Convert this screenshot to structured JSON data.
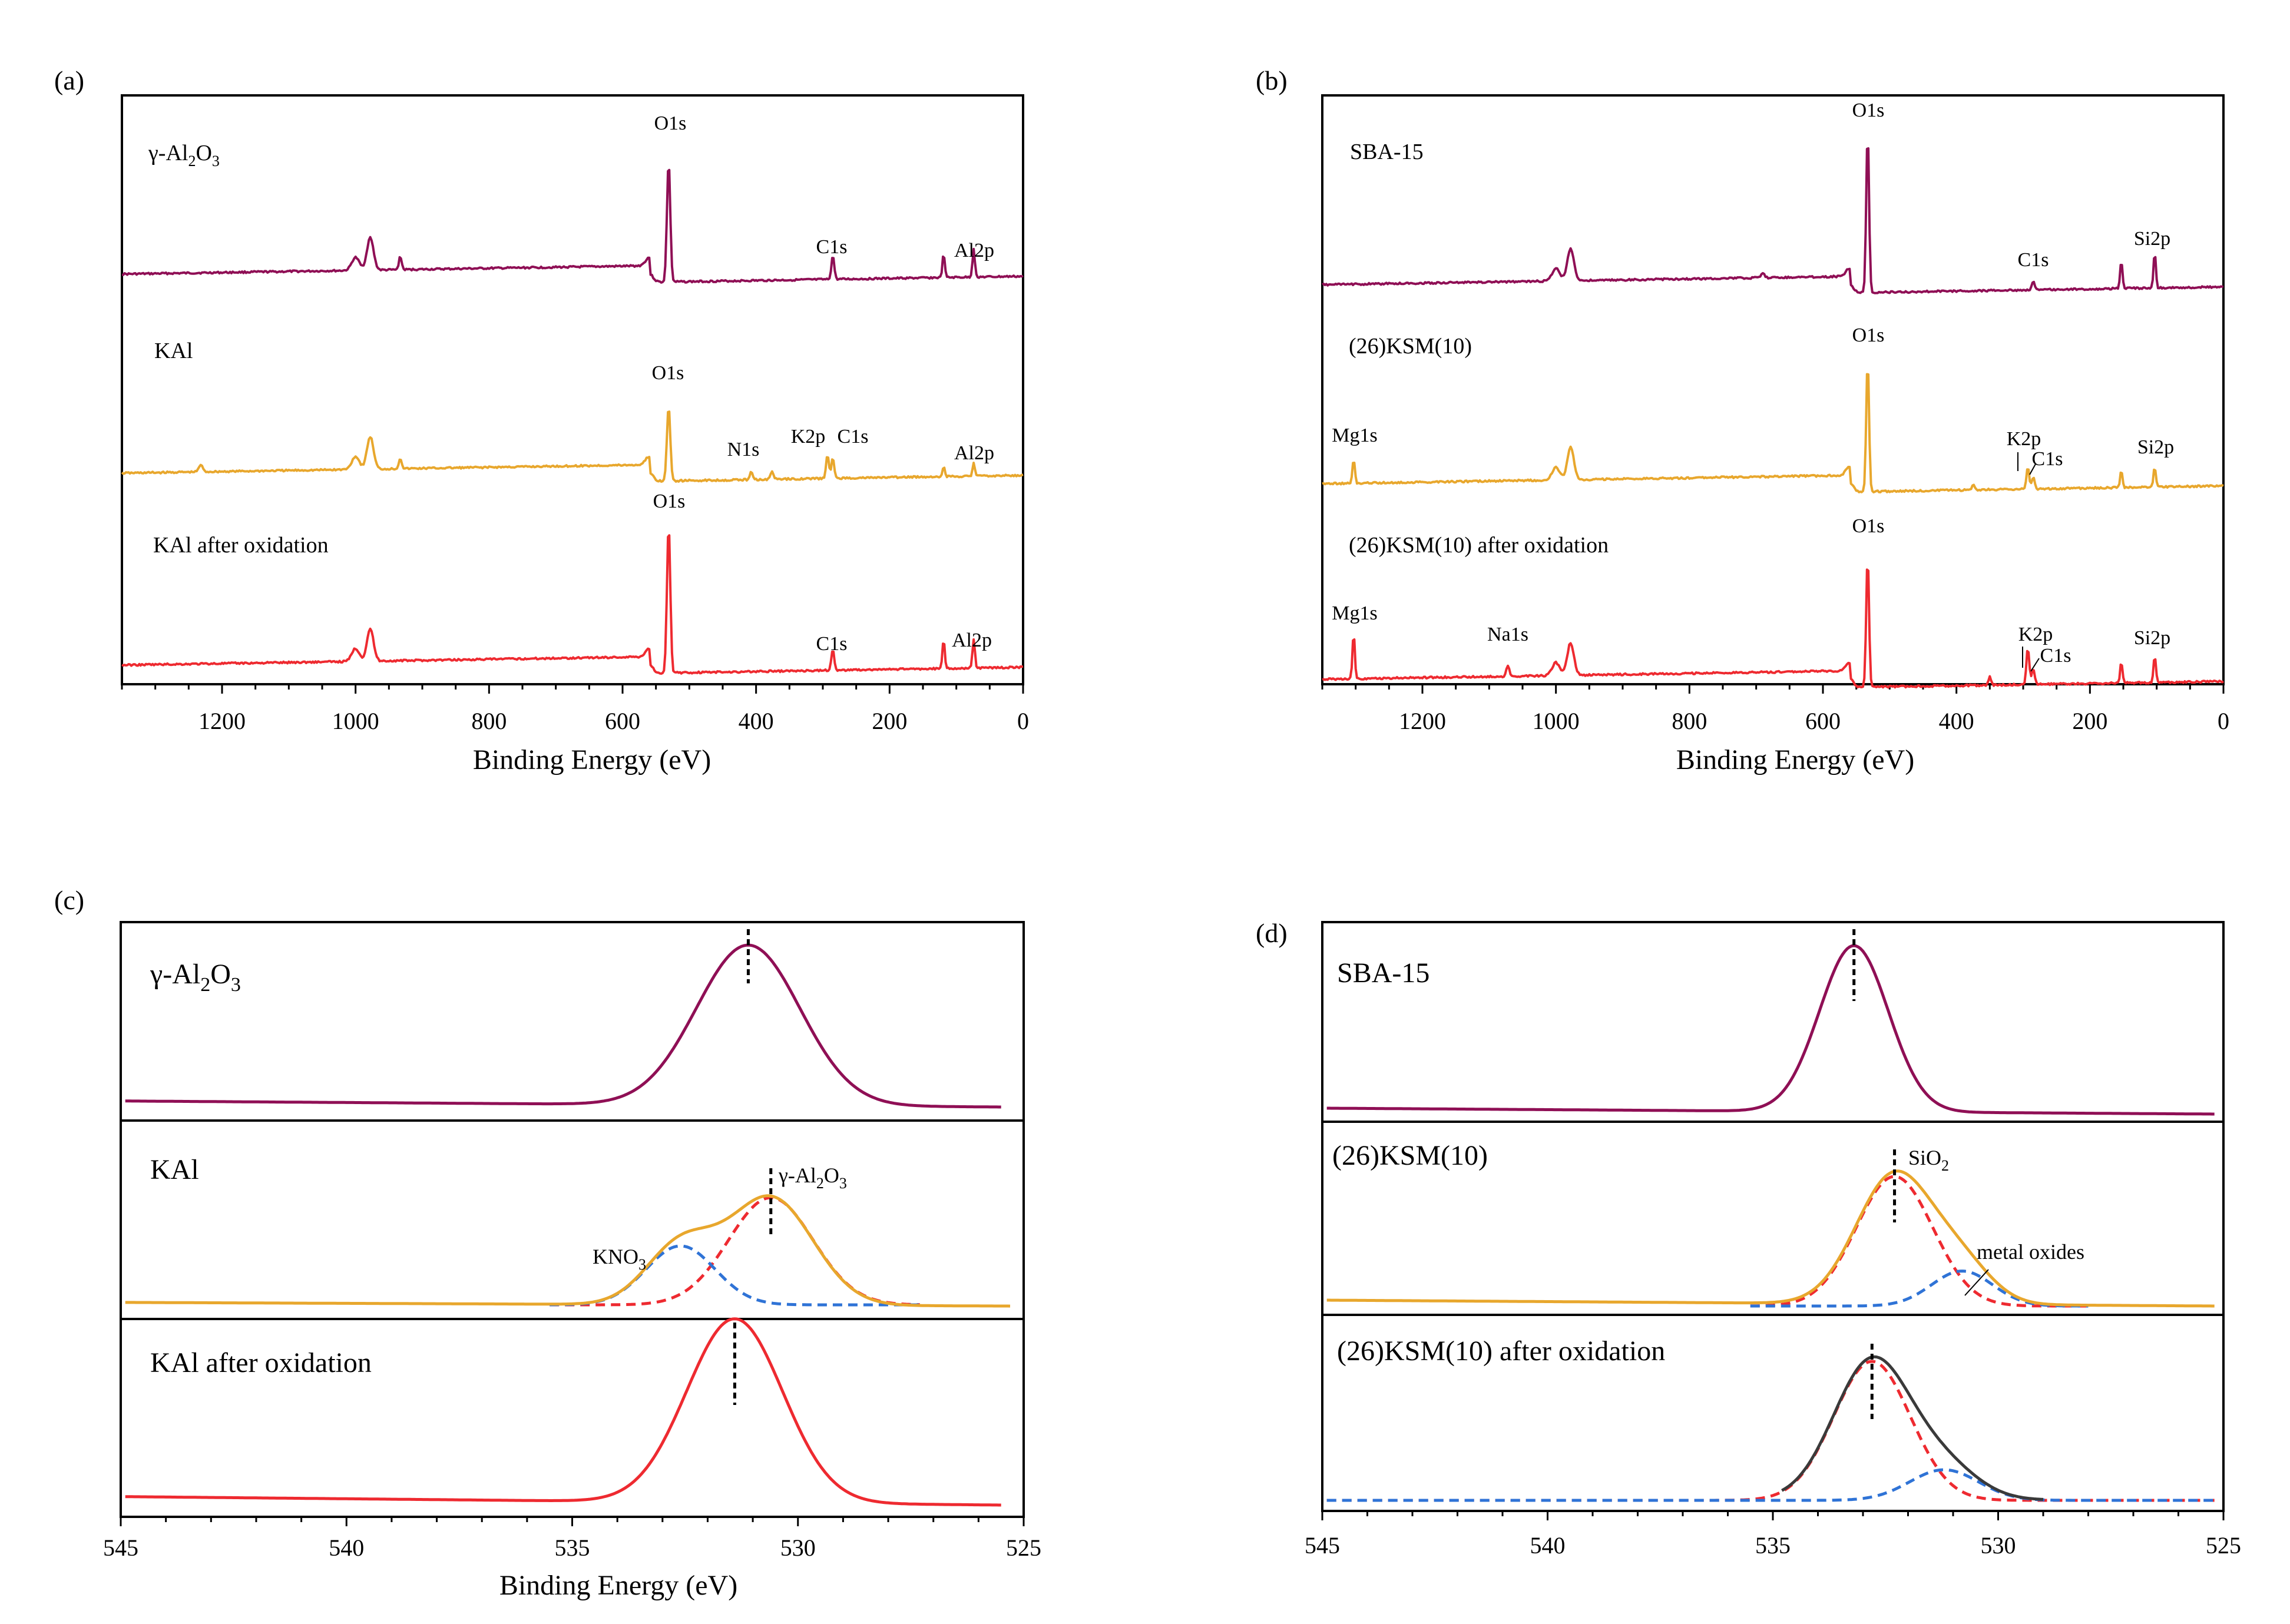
{
  "colors": {
    "purple": "#8f0f55",
    "orange": "#e8a72d",
    "red": "#ee2a30",
    "blue": "#2f73d6",
    "dark": "#3a3a3a"
  },
  "chart_data": [
    {
      "id": "a",
      "panel_label": "(a)",
      "type": "line",
      "title": "",
      "xlabel": "Binding Energy (eV)",
      "ylabel": "",
      "xlim": [
        1350,
        0
      ],
      "xreversed": true,
      "xticks": [
        1200,
        1000,
        800,
        600,
        400,
        200,
        0
      ],
      "xtick_labels": [
        "1200",
        "1000",
        "800",
        "600",
        "400",
        "200",
        "0"
      ],
      "series": [
        {
          "name": "γ-Al2O3",
          "label_base": "γ-Al",
          "label_sub1": "2",
          "label_mid": "O",
          "label_sub2": "3",
          "color": "purple",
          "peaks": [
            {
              "label": "O1s",
              "x": 531
            },
            {
              "label": "C1s",
              "x": 285
            },
            {
              "label": "Al2p",
              "x": 74
            }
          ]
        },
        {
          "name": "KAl",
          "label": "KAl",
          "color": "orange",
          "peaks": [
            {
              "label": "O1s",
              "x": 531
            },
            {
              "label": "N1s",
              "x": 407
            },
            {
              "label": "K2p",
              "x": 293
            },
            {
              "label": "C1s",
              "x": 285
            },
            {
              "label": "Al2p",
              "x": 74
            }
          ]
        },
        {
          "name": "KAl after oxidation",
          "label": "KAl after oxidation",
          "color": "red",
          "peaks": [
            {
              "label": "O1s",
              "x": 531
            },
            {
              "label": "C1s",
              "x": 285
            },
            {
              "label": "Al2p",
              "x": 74
            }
          ]
        }
      ]
    },
    {
      "id": "b",
      "panel_label": "(b)",
      "type": "line",
      "title": "",
      "xlabel": "Binding Energy (eV)",
      "ylabel": "",
      "xlim": [
        1350,
        0
      ],
      "xreversed": true,
      "xticks": [
        1200,
        1000,
        800,
        600,
        400,
        200,
        0
      ],
      "xtick_labels": [
        "1200",
        "1000",
        "800",
        "600",
        "400",
        "200",
        "0"
      ],
      "series": [
        {
          "name": "SBA-15",
          "label": "SBA-15",
          "color": "purple",
          "peaks": [
            {
              "label": "O1s",
              "x": 533
            },
            {
              "label": "C1s",
              "x": 285
            },
            {
              "label": "Si2p",
              "x": 103
            }
          ]
        },
        {
          "name": "(26)KSM(10)",
          "label": "(26)KSM(10)",
          "color": "orange",
          "peaks": [
            {
              "label": "Mg1s",
              "x": 1303
            },
            {
              "label": "O1s",
              "x": 533
            },
            {
              "label": "K2p",
              "x": 293
            },
            {
              "label": "C1s",
              "x": 285
            },
            {
              "label": "Si2p",
              "x": 103
            }
          ]
        },
        {
          "name": "(26)KSM(10) after oxidation",
          "label": "(26)KSM(10) after oxidation",
          "color": "red",
          "peaks": [
            {
              "label": "Mg1s",
              "x": 1303
            },
            {
              "label": "Na1s",
              "x": 1072
            },
            {
              "label": "O1s",
              "x": 533
            },
            {
              "label": "K2p",
              "x": 293
            },
            {
              "label": "C1s",
              "x": 285
            },
            {
              "label": "Si2p",
              "x": 103
            }
          ]
        }
      ]
    },
    {
      "id": "c",
      "panel_label": "(c)",
      "type": "line",
      "title": "",
      "xlabel": "Binding Energy (eV)",
      "ylabel": "",
      "xlim": [
        545,
        525
      ],
      "xreversed": true,
      "xticks": [
        545,
        540,
        535,
        530,
        525
      ],
      "xtick_labels": [
        "545",
        "540",
        "535",
        "530",
        "525"
      ],
      "series": [
        {
          "name": "γ-Al2O3",
          "label_base": "γ-Al",
          "label_sub1": "2",
          "label_mid": "O",
          "label_sub2": "3",
          "color": "purple",
          "peak_center": 531.1,
          "fwhm": 2.7
        },
        {
          "name": "KAl",
          "label": "KAl",
          "color": "orange",
          "components": [
            {
              "name": "γ-Al2O3",
              "label_base": "γ-Al",
              "label_sub1": "2",
              "label_mid": "O",
              "label_sub2": "3",
              "center": 530.6,
              "fwhm": 2.2,
              "amplitude": 1.0,
              "color": "red"
            },
            {
              "name": "KNO3",
              "label_base": "KNO",
              "label_sub": "3",
              "center": 532.6,
              "fwhm": 1.8,
              "amplitude": 0.55,
              "color": "blue"
            }
          ]
        },
        {
          "name": "KAl after oxidation",
          "label": "KAl after oxidation",
          "color": "red",
          "peak_center": 531.4,
          "fwhm": 2.5
        }
      ]
    },
    {
      "id": "d",
      "panel_label": "(d)",
      "type": "line",
      "title": "",
      "xlabel": "",
      "ylabel": "",
      "xlim": [
        545,
        525
      ],
      "xreversed": true,
      "xticks": [
        545,
        540,
        535,
        530,
        525
      ],
      "xtick_labels": [
        "545",
        "540",
        "535",
        "530",
        "525"
      ],
      "series": [
        {
          "name": "SBA-15",
          "label": "SBA-15",
          "color": "purple",
          "peak_center": 533.2,
          "fwhm": 1.8
        },
        {
          "name": "(26)KSM(10)",
          "label": "(26)KSM(10)",
          "color": "orange",
          "components": [
            {
              "name": "SiO2",
              "label_base": "SiO",
              "label_sub": "2",
              "center": 532.3,
              "fwhm": 2.0,
              "amplitude": 1.0,
              "color": "red"
            },
            {
              "name": "metal oxides",
              "label": "metal oxides",
              "center": 530.8,
              "fwhm": 1.6,
              "amplitude": 0.27,
              "color": "blue"
            }
          ]
        },
        {
          "name": "(26)KSM(10) after oxidation",
          "label": "(26)KSM(10) after oxidation",
          "color": "dark",
          "components": [
            {
              "center": 532.8,
              "fwhm": 2.0,
              "amplitude": 1.0,
              "color": "red"
            },
            {
              "center": 531.2,
              "fwhm": 1.8,
              "amplitude": 0.22,
              "color": "blue"
            }
          ]
        }
      ]
    }
  ]
}
